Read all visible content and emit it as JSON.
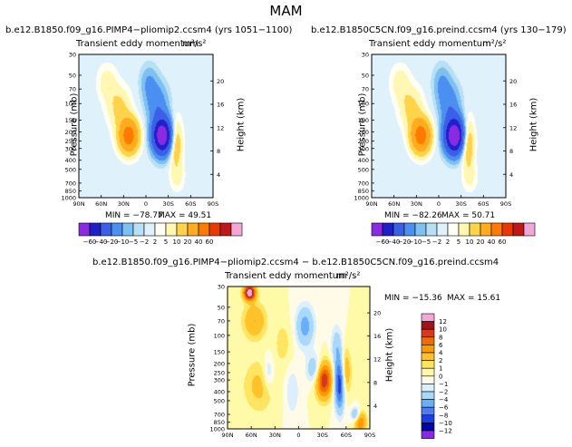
{
  "page_title": "MAM",
  "colors": {
    "bg": "#ffffff",
    "line": "#000000",
    "palette_main": [
      "#8a2be2",
      "#2020c8",
      "#3b5fe6",
      "#4b8ff0",
      "#7ec0f0",
      "#b8e0f5",
      "#dff1fa",
      "#fffff2",
      "#fff7b2",
      "#ffd34a",
      "#ffac1f",
      "#ff7a00",
      "#e83a00",
      "#c01818",
      "#f2a7d6"
    ],
    "palette_diff": [
      "#8a2be2",
      "#0000b0",
      "#1e40e0",
      "#4d7ef0",
      "#68aef8",
      "#a9d8f8",
      "#dcefff",
      "#fffbe6",
      "#fffaa8",
      "#ffe560",
      "#ffc22a",
      "#ff9a00",
      "#f26b00",
      "#d43a1e",
      "#9e1414",
      "#f2a7d6"
    ]
  },
  "chart_data": [
    {
      "type": "heatmap",
      "name": "PIMP4 pliomip2",
      "case_title": "b.e12.B1850.f09_g16.PIMP4−pliomip2.ccsm4  (yrs 1051−1100)",
      "title": "Transient  eddy  momentum",
      "units": "m²/s²",
      "xlabel": "",
      "ylabel": "Pressure  (mb)",
      "y2label": "Height  (km)",
      "x_ticks": [
        "90N",
        "60N",
        "30N",
        "0",
        "30S",
        "60S",
        "90S"
      ],
      "y_ticks": [
        "30",
        "50",
        "70",
        "100",
        "150",
        "200",
        "250",
        "300",
        "400",
        "500",
        "700",
        "850",
        "1000"
      ],
      "y_tick_values": [
        30,
        50,
        70,
        100,
        150,
        200,
        250,
        300,
        400,
        500,
        700,
        850,
        1000
      ],
      "height_ticks": [
        "20",
        "16",
        "12",
        "8",
        "4"
      ],
      "height_tick_values": [
        20,
        16,
        12,
        8,
        4
      ],
      "xlim": [
        90,
        -90
      ],
      "ylim": [
        30,
        1000
      ],
      "min_label": "MIN = −78.77",
      "max_label": "MAX =  49.51",
      "min": -78.77,
      "max": 49.51,
      "colorbar_labels": [
        "−60",
        "−40",
        "−20",
        "−10",
        "−5",
        "−2",
        "2",
        "5",
        "10",
        "20",
        "40",
        "60"
      ],
      "levels": [
        -60,
        -40,
        -20,
        -10,
        -5,
        -2,
        2,
        5,
        10,
        20,
        40,
        60
      ],
      "features": [
        {
          "lat": 23,
          "p": 220,
          "value": 52,
          "lat_width": 9,
          "logp_width": 0.28
        },
        {
          "lat": 36,
          "p": 110,
          "value": 12,
          "lat_width": 11,
          "logp_width": 0.35
        },
        {
          "lat": 52,
          "p": 60,
          "value": 8,
          "lat_width": 9,
          "logp_width": 0.3
        },
        {
          "lat": -22,
          "p": 220,
          "value": -80,
          "lat_width": 9,
          "logp_width": 0.3
        },
        {
          "lat": -15,
          "p": 100,
          "value": -16,
          "lat_width": 10,
          "logp_width": 0.35
        },
        {
          "lat": -4,
          "p": 60,
          "value": -10,
          "lat_width": 8,
          "logp_width": 0.3
        },
        {
          "lat": -40,
          "p": 260,
          "value": 20,
          "lat_width": 6,
          "logp_width": 0.4
        },
        {
          "lat": -42,
          "p": 600,
          "value": 6,
          "lat_width": 7,
          "logp_width": 0.25
        }
      ]
    },
    {
      "type": "heatmap",
      "name": "B1850C5CN preind",
      "case_title": "b.e12.B1850C5CN.f09_g16.preind.ccsm4  (yrs 130−179)",
      "title": "Transient  eddy  momentum",
      "units": "m²/s²",
      "xlabel": "",
      "ylabel": "Pressure  (mb)",
      "y2label": "Height  (km)",
      "x_ticks": [
        "90N",
        "60N",
        "30N",
        "0",
        "30S",
        "60S",
        "90S"
      ],
      "y_ticks": [
        "30",
        "50",
        "70",
        "100",
        "150",
        "200",
        "250",
        "300",
        "400",
        "500",
        "700",
        "850",
        "1000"
      ],
      "y_tick_values": [
        30,
        50,
        70,
        100,
        150,
        200,
        250,
        300,
        400,
        500,
        700,
        850,
        1000
      ],
      "height_ticks": [
        "20",
        "16",
        "12",
        "8",
        "4"
      ],
      "height_tick_values": [
        20,
        16,
        12,
        8,
        4
      ],
      "xlim": [
        90,
        -90
      ],
      "ylim": [
        30,
        1000
      ],
      "min_label": "MIN = −82.26",
      "max_label": "MAX =  50.71",
      "min": -82.26,
      "max": 50.71,
      "colorbar_labels": [
        "−60",
        "−40",
        "−20",
        "−10",
        "−5",
        "−2",
        "2",
        "5",
        "10",
        "20",
        "40",
        "60"
      ],
      "levels": [
        -60,
        -40,
        -20,
        -10,
        -5,
        -2,
        2,
        5,
        10,
        20,
        40,
        60
      ],
      "features": [
        {
          "lat": 24,
          "p": 220,
          "value": 53,
          "lat_width": 9,
          "logp_width": 0.28
        },
        {
          "lat": 37,
          "p": 110,
          "value": 12,
          "lat_width": 11,
          "logp_width": 0.35
        },
        {
          "lat": 52,
          "p": 60,
          "value": 8,
          "lat_width": 9,
          "logp_width": 0.3
        },
        {
          "lat": -21,
          "p": 220,
          "value": -84,
          "lat_width": 9,
          "logp_width": 0.3
        },
        {
          "lat": -14,
          "p": 100,
          "value": -16,
          "lat_width": 10,
          "logp_width": 0.35
        },
        {
          "lat": -4,
          "p": 60,
          "value": -10,
          "lat_width": 8,
          "logp_width": 0.3
        },
        {
          "lat": -39,
          "p": 260,
          "value": 21,
          "lat_width": 6,
          "logp_width": 0.4
        },
        {
          "lat": -42,
          "p": 600,
          "value": 6,
          "lat_width": 7,
          "logp_width": 0.25
        }
      ]
    },
    {
      "type": "heatmap",
      "name": "difference",
      "case_title": "b.e12.B1850.f09_g16.PIMP4−pliomip2.ccsm4  −  b.e12.B1850C5CN.f09_g16.preind.ccsm4",
      "title": "Transient  eddy  momentum",
      "units": "m²/s²",
      "xlabel": "",
      "ylabel": "Pressure  (mb)",
      "y2label": "Height  (km)",
      "x_ticks": [
        "90N",
        "60N",
        "30N",
        "0",
        "30S",
        "60S",
        "90S"
      ],
      "y_ticks": [
        "30",
        "50",
        "70",
        "100",
        "150",
        "200",
        "250",
        "300",
        "400",
        "500",
        "700",
        "850",
        "1000"
      ],
      "y_tick_values": [
        30,
        50,
        70,
        100,
        150,
        200,
        250,
        300,
        400,
        500,
        700,
        850,
        1000
      ],
      "height_ticks": [
        "20",
        "16",
        "12",
        "8",
        "4"
      ],
      "height_tick_values": [
        20,
        16,
        12,
        8,
        4
      ],
      "xlim": [
        90,
        -90
      ],
      "ylim": [
        30,
        1000
      ],
      "min_label": "MIN = −15.36",
      "max_label": "MAX =  15.61",
      "min": -15.36,
      "max": 15.61,
      "colorbar_labels": [
        "12",
        "10",
        "8",
        "6",
        "4",
        "2",
        "1",
        "0",
        "−1",
        "−2",
        "−4",
        "−6",
        "−8",
        "−10",
        "−12"
      ],
      "levels": [
        -12,
        -10,
        -8,
        -6,
        -4,
        -2,
        -1,
        0,
        1,
        2,
        4,
        6,
        8,
        10,
        12
      ],
      "features": [
        {
          "lat": 62,
          "p": 35,
          "value": 15,
          "lat_width": 5,
          "logp_width": 0.12
        },
        {
          "lat": 56,
          "p": 70,
          "value": 4,
          "lat_width": 10,
          "logp_width": 0.3
        },
        {
          "lat": 50,
          "p": 350,
          "value": 2.5,
          "lat_width": 14,
          "logp_width": 0.45
        },
        {
          "lat": 20,
          "p": 120,
          "value": 1.5,
          "lat_width": 8,
          "logp_width": 0.4
        },
        {
          "lat": 38,
          "p": 250,
          "value": -2.5,
          "lat_width": 5,
          "logp_width": 0.3
        },
        {
          "lat": 8,
          "p": 400,
          "value": -2,
          "lat_width": 6,
          "logp_width": 0.4
        },
        {
          "lat": -8,
          "p": 80,
          "value": -5,
          "lat_width": 8,
          "logp_width": 0.35
        },
        {
          "lat": -20,
          "p": 230,
          "value": -4,
          "lat_width": 7,
          "logp_width": 0.25
        },
        {
          "lat": -32,
          "p": 300,
          "value": 10,
          "lat_width": 7,
          "logp_width": 0.3
        },
        {
          "lat": -52,
          "p": 320,
          "value": -11,
          "lat_width": 4.5,
          "logp_width": 0.45
        },
        {
          "lat": -48,
          "p": 130,
          "value": -3,
          "lat_width": 5,
          "logp_width": 0.35
        },
        {
          "lat": -58,
          "p": 250,
          "value": 5,
          "lat_width": 5,
          "logp_width": 0.4
        },
        {
          "lat": -78,
          "p": 850,
          "value": 6,
          "lat_width": 5,
          "logp_width": 0.18
        },
        {
          "lat": -72,
          "p": 700,
          "value": -5,
          "lat_width": 4,
          "logp_width": 0.12
        }
      ]
    }
  ]
}
